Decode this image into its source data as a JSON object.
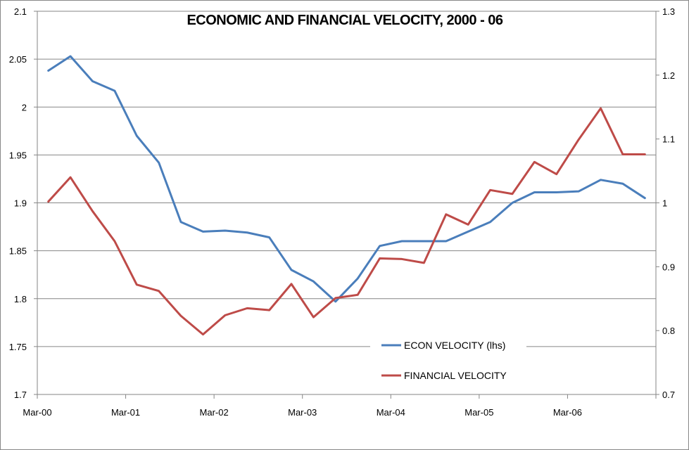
{
  "chart_data": {
    "type": "line",
    "title": "ECONOMIC AND FINANCIAL VELOCITY, 2000 - 06",
    "xlabel": "",
    "ylabel": "",
    "x_tick_labels": [
      "Mar-00",
      "Mar-01",
      "Mar-02",
      "Mar-03",
      "Mar-04",
      "Mar-05",
      "Mar-06"
    ],
    "n_points": 28,
    "left_axis": {
      "ylim": [
        1.7,
        2.1
      ],
      "ticks": [
        "1.7",
        "1.75",
        "1.8",
        "1.85",
        "1.9",
        "1.95",
        "2",
        "2.05",
        "2.1"
      ],
      "tick_values": [
        1.7,
        1.75,
        1.8,
        1.85,
        1.9,
        1.95,
        2.0,
        2.05,
        2.1
      ]
    },
    "right_axis": {
      "ylim": [
        0.7,
        1.3
      ],
      "ticks": [
        "0.7",
        "0.8",
        "0.9",
        "1",
        "1.1",
        "1.2",
        "1.3"
      ],
      "tick_values": [
        0.7,
        0.8,
        0.9,
        1.0,
        1.1,
        1.2,
        1.3
      ]
    },
    "grid": "horizontal",
    "legend_position": "bottom-center",
    "series": [
      {
        "name": "ECON VELOCITY (lhs)",
        "axis": "left",
        "color": "#4a7ebb",
        "values": [
          2.038,
          2.053,
          2.027,
          2.017,
          1.97,
          1.942,
          1.88,
          1.87,
          1.871,
          1.869,
          1.864,
          1.83,
          1.818,
          1.797,
          1.821,
          1.855,
          1.86,
          1.86,
          1.86,
          1.87,
          1.88,
          1.9,
          1.911,
          1.911,
          1.912,
          1.924,
          1.92,
          1.905
        ]
      },
      {
        "name": "FINANCIAL VELOCITY",
        "axis": "right",
        "color": "#be4b48",
        "values": [
          1.002,
          1.04,
          0.987,
          0.94,
          0.872,
          0.862,
          0.823,
          0.794,
          0.824,
          0.835,
          0.832,
          0.873,
          0.821,
          0.851,
          0.856,
          0.913,
          0.912,
          0.906,
          0.982,
          0.966,
          1.02,
          1.014,
          1.064,
          1.045,
          1.099,
          1.148,
          1.076,
          1.076
        ]
      }
    ]
  }
}
